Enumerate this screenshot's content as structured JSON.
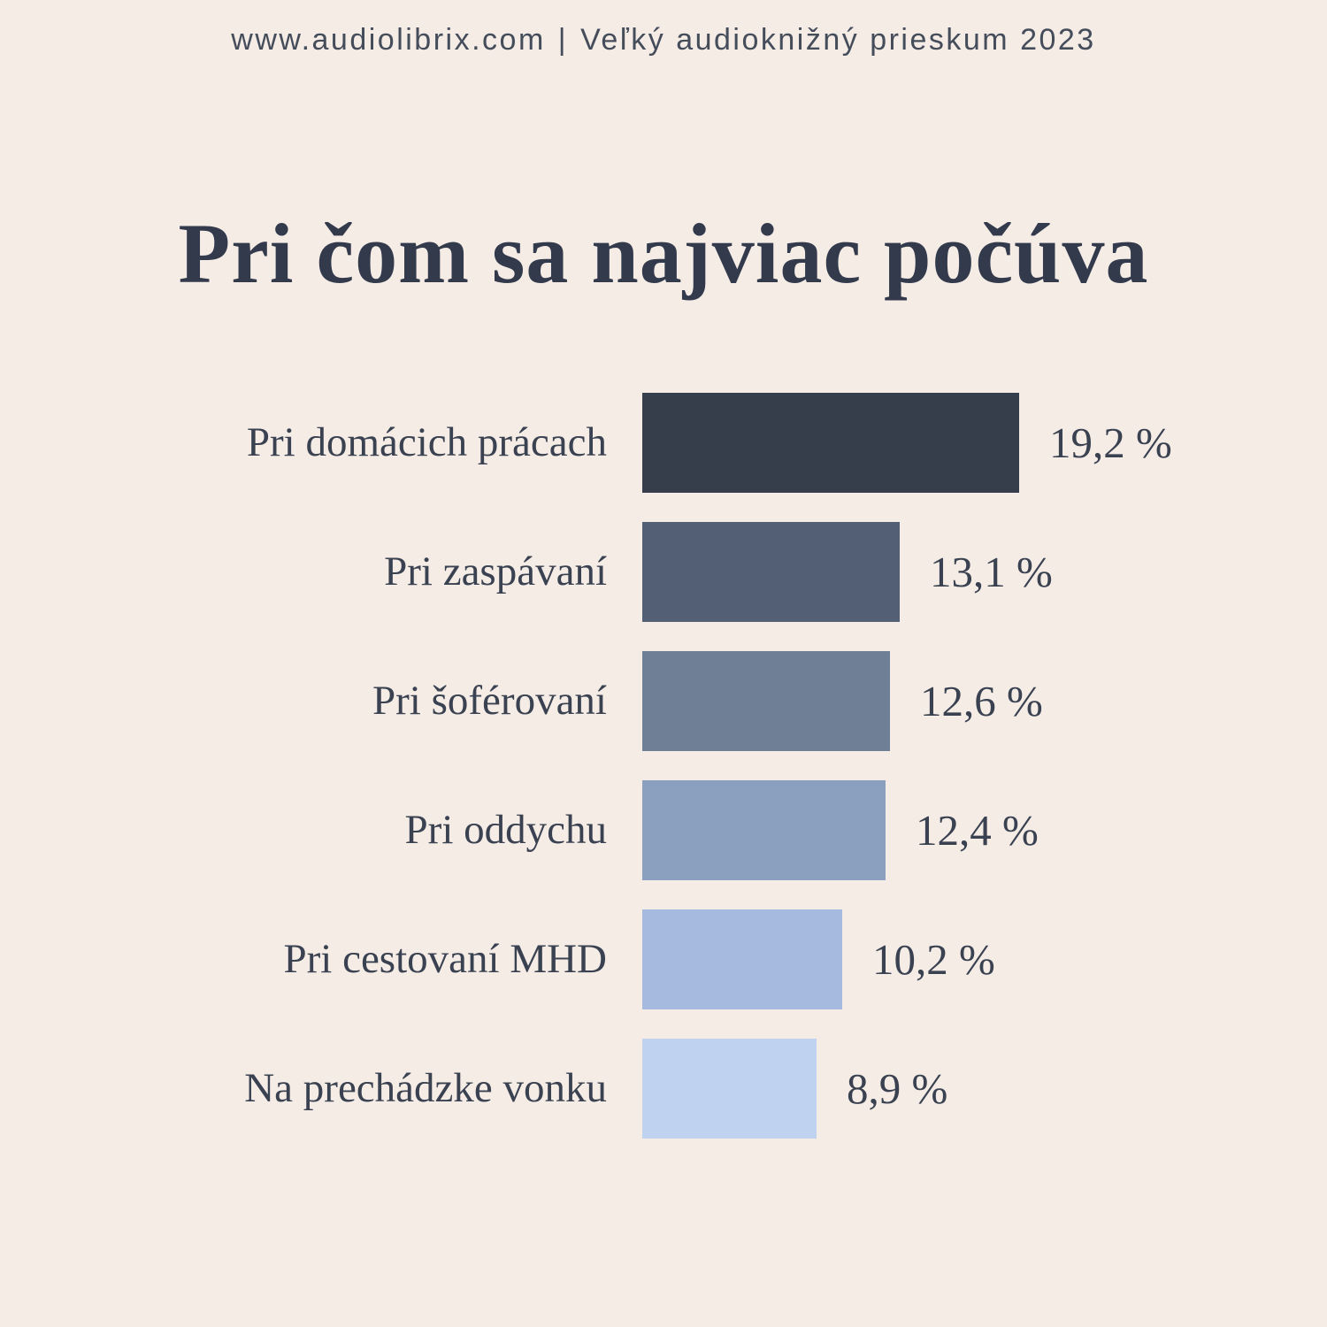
{
  "header": {
    "website": "www.audiolibrix.com",
    "separator": "|",
    "survey_name": "Veľký audioknižný prieskum 2023"
  },
  "title": "Pri čom sa najviac počúva",
  "chart_data": {
    "type": "bar",
    "orientation": "horizontal",
    "title": "Pri čom sa najviac počúva",
    "xlabel": "",
    "ylabel": "",
    "xlim": [
      0,
      19.2
    ],
    "grid": false,
    "legend": null,
    "categories": [
      "Pri domácich prácach",
      "Pri zaspávaní",
      "Pri šoférovaní",
      "Pri oddychu",
      "Pri cestovaní MHD",
      "Na prechádzke vonku"
    ],
    "values": [
      19.2,
      13.1,
      12.6,
      12.4,
      10.2,
      8.9
    ],
    "value_labels": [
      "19,2 %",
      "13,1 %",
      "12,6 %",
      "12,4 %",
      "10,2 %",
      "8,9 %"
    ],
    "bar_colors": [
      "#363D4B",
      "#535F74",
      "#6F8096",
      "#8BA0BE",
      "#A6B9DF",
      "#BFD2F0"
    ]
  },
  "colors": {
    "background": "#F5ECE6",
    "title_text": "#323A4C",
    "label_text": "#3A4251",
    "header_text": "#454D5B"
  }
}
